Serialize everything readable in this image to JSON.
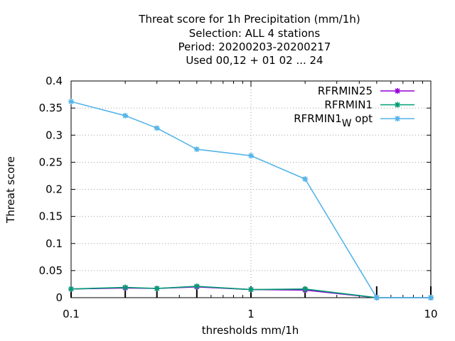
{
  "chart_data": {
    "type": "line",
    "title_lines": [
      "Threat score  for 1h Precipitation (mm/1h)",
      "Selection: ALL      4 stations",
      "Period: 20200203-20200217",
      "Used  00,12  + 01 02 ... 24"
    ],
    "xlabel": "thresholds mm/1h",
    "ylabel": "Threat score",
    "xscale": "log",
    "xlim": [
      0.1,
      10
    ],
    "ylim": [
      0,
      0.4
    ],
    "xticks": [
      {
        "v": 0.1,
        "label": "0.1"
      },
      {
        "v": 1,
        "label": "1"
      },
      {
        "v": 10,
        "label": "10"
      }
    ],
    "xminor": [
      0.2,
      0.3,
      0.4,
      0.5,
      0.6,
      0.7,
      0.8,
      0.9,
      2,
      3,
      4,
      5,
      6,
      7,
      8,
      9
    ],
    "yticks": [
      {
        "v": 0,
        "label": "0"
      },
      {
        "v": 0.05,
        "label": "0.05"
      },
      {
        "v": 0.1,
        "label": "0.1"
      },
      {
        "v": 0.15,
        "label": "0.15"
      },
      {
        "v": 0.2,
        "label": "0.2"
      },
      {
        "v": 0.25,
        "label": "0.25"
      },
      {
        "v": 0.3,
        "label": "0.3"
      },
      {
        "v": 0.35,
        "label": "0.35"
      },
      {
        "v": 0.4,
        "label": "0.4"
      }
    ],
    "grid": true,
    "legend_position": "top-right",
    "x": [
      0.1,
      0.2,
      0.3,
      0.5,
      1,
      2,
      5,
      10
    ],
    "series": [
      {
        "name": "RFRMIN25",
        "color": "#9400d3",
        "values": [
          0.016,
          0.018,
          0.017,
          0.02,
          0.015,
          0.014,
          0.0,
          0.0
        ]
      },
      {
        "name": "RFRMIN1",
        "color": "#009e73",
        "values": [
          0.016,
          0.019,
          0.017,
          0.021,
          0.015,
          0.016,
          0.0,
          0.0
        ]
      },
      {
        "name": "RFRMIN1",
        "subscript": "W",
        "suffix": " opt",
        "color": "#56b4e9",
        "values": [
          0.362,
          0.336,
          0.313,
          0.274,
          0.262,
          0.219,
          0.0,
          0.0
        ]
      }
    ],
    "count_bars": {
      "x": [
        0.1,
        0.2,
        0.3,
        0.5,
        1,
        2,
        5,
        10
      ],
      "values": [
        4,
        4,
        4,
        4,
        4,
        4,
        4,
        4
      ]
    }
  }
}
